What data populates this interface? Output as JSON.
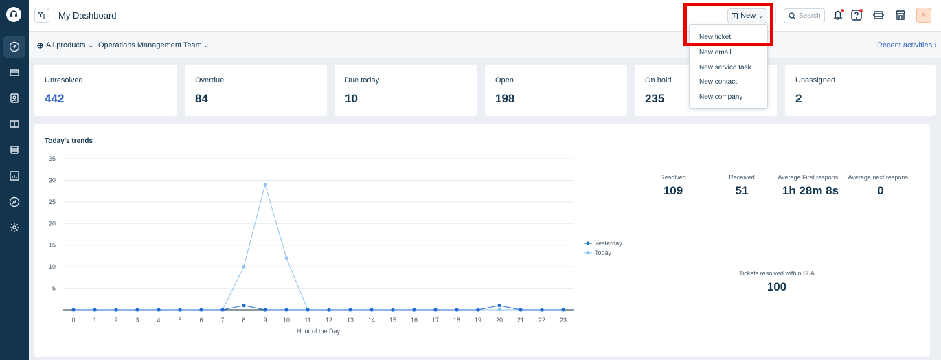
{
  "header": {
    "title": "My Dashboard",
    "new_label": "New",
    "search_placeholder": "Search",
    "avatar_initial": "N"
  },
  "subheader": {
    "products_label": "All products",
    "team_label": "Operations Management Team",
    "recent_label": "Recent activities"
  },
  "cards": [
    {
      "label": "Unresolved",
      "value": "442"
    },
    {
      "label": "Overdue",
      "value": "84"
    },
    {
      "label": "Due today",
      "value": "10"
    },
    {
      "label": "Open",
      "value": "198"
    },
    {
      "label": "On hold",
      "value": "235"
    },
    {
      "label": "Unassigned",
      "value": "2"
    }
  ],
  "new_menu": [
    "New ticket",
    "New email",
    "New service task",
    "New contact",
    "New company"
  ],
  "trends": {
    "title": "Today's trends",
    "metrics": [
      {
        "label": "Resolved",
        "value": "109"
      },
      {
        "label": "Received",
        "value": "51"
      },
      {
        "label": "Average First respons...",
        "value": "1h 28m 8s"
      },
      {
        "label": "Average next respons...",
        "value": "0"
      }
    ],
    "sla": {
      "label": "Tickets resolved within SLA",
      "value": "100"
    }
  },
  "chart_data": {
    "type": "line",
    "xlabel": "Hour of the Day",
    "ylabel": "",
    "ylim": [
      0,
      35
    ],
    "yticks": [
      5,
      10,
      15,
      20,
      25,
      30,
      35
    ],
    "x": [
      0,
      1,
      2,
      3,
      4,
      5,
      6,
      7,
      8,
      9,
      10,
      11,
      12,
      13,
      14,
      15,
      16,
      17,
      18,
      19,
      20,
      21,
      22,
      23
    ],
    "series": [
      {
        "name": "Yesterday",
        "color": "#1f6fd1",
        "values": [
          0,
          0,
          0,
          0,
          0,
          0,
          0,
          0,
          1,
          0,
          0,
          0,
          0,
          0,
          0,
          0,
          0,
          0,
          0,
          0,
          1,
          0,
          0,
          0
        ]
      },
      {
        "name": "Today",
        "color": "#8ec1f0",
        "values": [
          0,
          0,
          0,
          0,
          0,
          0,
          0,
          0,
          10,
          29,
          12,
          0,
          0,
          0,
          0,
          0,
          0,
          0,
          0,
          0,
          0,
          0,
          0,
          0
        ]
      }
    ],
    "legend_position": "right"
  }
}
